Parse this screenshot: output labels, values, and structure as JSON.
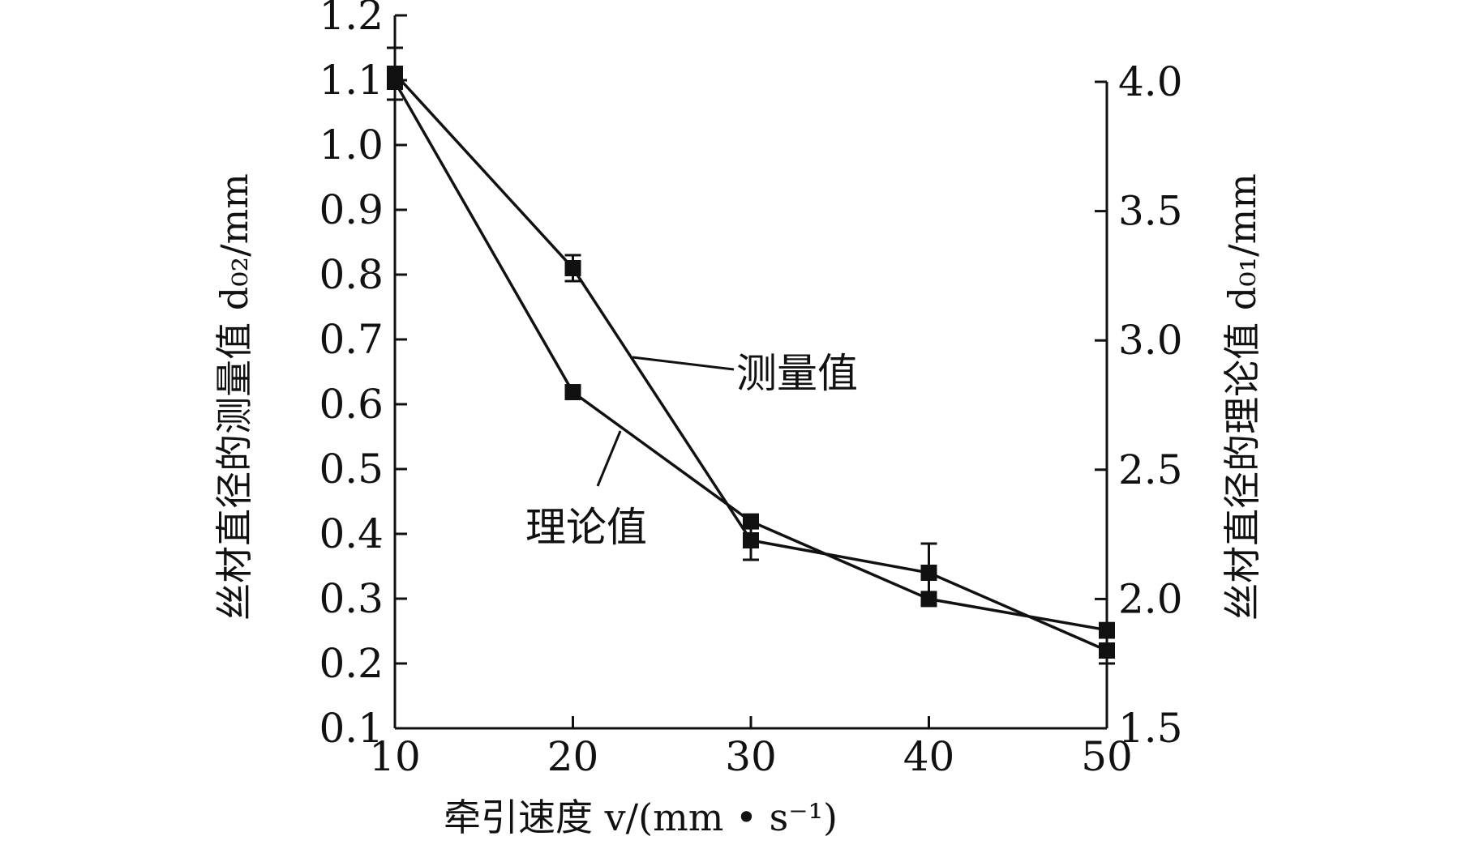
{
  "chart_data": {
    "type": "line",
    "x": [
      10,
      20,
      30,
      40,
      50
    ],
    "xlabel": "牵引速度 v/(mm • s⁻¹)",
    "xlim": [
      10,
      50
    ],
    "xticks": [
      "10",
      "20",
      "30",
      "40",
      "50"
    ],
    "ylabel_left": "丝材直径的测量值 d₀₂/mm",
    "ylim_left": [
      0.1,
      1.2
    ],
    "yticks_left": [
      "0.1",
      "0.2",
      "0.3",
      "0.4",
      "0.5",
      "0.6",
      "0.7",
      "0.8",
      "0.9",
      "1.0",
      "1.1",
      "1.2"
    ],
    "ylabel_right": "丝材直径的理论值 d₀₁/mm",
    "ylim_right": [
      1.5,
      4.0
    ],
    "yticks_right": [
      "1.5",
      "2.0",
      "2.5",
      "3.0",
      "3.5",
      "4.0"
    ],
    "series": [
      {
        "name": "测量值",
        "axis": "left",
        "values": [
          1.11,
          0.81,
          0.39,
          0.34,
          0.22
        ],
        "error": [
          0.04,
          0.02,
          0.03,
          0.045,
          0.02
        ]
      },
      {
        "name": "理论值",
        "axis": "right",
        "values": [
          4.0,
          2.8,
          2.3,
          2.0,
          1.88
        ]
      }
    ],
    "grid": false,
    "legend": "none"
  }
}
